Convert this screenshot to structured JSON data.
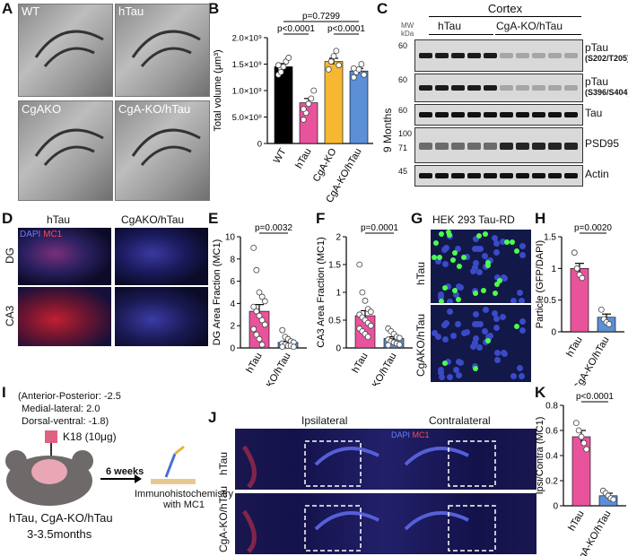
{
  "panels": {
    "A": "A",
    "B": "B",
    "C": "C",
    "D": "D",
    "E": "E",
    "F": "F",
    "G": "G",
    "H": "H",
    "I": "I",
    "J": "J",
    "K": "K"
  },
  "panelA": {
    "labels": [
      "WT",
      "hTau",
      "CgAKO",
      "CgA-KO/hTau"
    ]
  },
  "chart_data": [
    {
      "type": "bar",
      "panel": "B",
      "title": "",
      "ylabel": "Total volume (μm³)",
      "categories": [
        "WT",
        "hTau",
        "CgA-KO",
        "CgA-KO/hTau"
      ],
      "colors": [
        "#000000",
        "#e8539c",
        "#f5b830",
        "#5b8fd6"
      ],
      "values": [
        1450000000.0,
        770000000.0,
        1550000000.0,
        1370000000.0
      ],
      "errors": [
        60000000.0,
        80000000.0,
        60000000.0,
        50000000.0
      ],
      "points": [
        [
          1300000000.0,
          1400000000.0,
          1450000000.0,
          1550000000.0,
          1620000000.0,
          1480000000.0,
          1350000000.0
        ],
        [
          450000000.0,
          580000000.0,
          750000000.0,
          850000000.0,
          1000000000.0,
          650000000.0
        ],
        [
          1400000000.0,
          1550000000.0,
          1650000000.0,
          1750000000.0,
          1480000000.0
        ],
        [
          1250000000.0,
          1350000000.0,
          1400000000.0,
          1500000000.0,
          1300000000.0,
          1420000000.0
        ]
      ],
      "ylim": [
        0,
        2000000000.0
      ],
      "ticks": [
        {
          "v": 0,
          "label": "0"
        },
        {
          "v": 500000000.0,
          "label": "5.0×10⁸"
        },
        {
          "v": 1000000000.0,
          "label": "1.0×10⁹"
        },
        {
          "v": 1500000000.0,
          "label": "1.5×10⁹"
        },
        {
          "v": 2000000000.0,
          "label": "2.0×10⁹"
        }
      ],
      "pvalues": [
        {
          "from": 0,
          "to": 3,
          "label": "p=0.7299",
          "level": 2
        },
        {
          "from": 0,
          "to": 1,
          "label": "p<0.0001",
          "level": 1
        },
        {
          "from": 2,
          "to": 3,
          "label": "p<0.0001",
          "level": 1
        }
      ]
    },
    {
      "type": "bar",
      "panel": "E",
      "ylabel": "DG Area Fraction (MC1)",
      "categories": [
        "hTau",
        "CgA-KO/hTau"
      ],
      "colors": [
        "#e8539c",
        "#5b8fd6"
      ],
      "values": [
        3.3,
        0.5
      ],
      "errors": [
        0.6,
        0.12
      ],
      "points": [
        [
          9.0,
          7.0,
          5.0,
          4.6,
          4.2,
          3.7,
          3.3,
          2.9,
          2.5,
          2.1,
          1.7,
          1.2,
          0.8,
          0.3
        ],
        [
          1.6,
          1.0,
          0.8,
          0.6,
          0.5,
          0.4,
          0.3,
          0.2,
          0.2,
          0.1,
          0.1
        ]
      ],
      "ylim": [
        0,
        10
      ],
      "ticks": [
        0,
        2,
        4,
        6,
        8,
        10
      ],
      "pvalues": [
        {
          "from": 0,
          "to": 1,
          "label": "p=0.0032",
          "level": 1
        }
      ]
    },
    {
      "type": "bar",
      "panel": "F",
      "ylabel": "CA3 Area Fraction (MC1)",
      "categories": [
        "hTau",
        "CgA-KO/hTau"
      ],
      "colors": [
        "#e8539c",
        "#5b8fd6"
      ],
      "values": [
        0.58,
        0.17
      ],
      "errors": [
        0.09,
        0.03
      ],
      "points": [
        [
          1.5,
          1.0,
          0.85,
          0.7,
          0.65,
          0.6,
          0.55,
          0.5,
          0.45,
          0.4,
          0.35,
          0.3,
          0.25,
          0.2
        ],
        [
          0.35,
          0.3,
          0.25,
          0.2,
          0.18,
          0.15,
          0.12,
          0.1,
          0.08,
          0.06,
          0.05
        ]
      ],
      "ylim": [
        0,
        2.0
      ],
      "ticks": [
        0,
        0.5,
        1.0,
        1.5,
        2.0
      ],
      "pvalues": [
        {
          "from": 0,
          "to": 1,
          "label": "p=0.0001",
          "level": 1
        }
      ]
    },
    {
      "type": "bar",
      "panel": "H",
      "ylabel": "Particle (GFP/DAPI)",
      "categories": [
        "hTau",
        "CgA-KO/hTau"
      ],
      "colors": [
        "#e8539c",
        "#5b8fd6"
      ],
      "values": [
        1.0,
        0.23
      ],
      "errors": [
        0.08,
        0.05
      ],
      "points": [
        [
          1.25,
          1.0,
          0.9,
          0.85
        ],
        [
          0.35,
          0.2,
          0.15,
          0.12
        ]
      ],
      "ylim": [
        0,
        1.5
      ],
      "ticks": [
        0,
        0.5,
        1.0,
        1.5
      ],
      "pvalues": [
        {
          "from": 0,
          "to": 1,
          "label": "p=0.0020",
          "level": 1
        }
      ]
    },
    {
      "type": "bar",
      "panel": "K",
      "ylabel": "Ipsi/Contra (MC1)",
      "categories": [
        "hTau",
        "CgA-KO/hTau"
      ],
      "colors": [
        "#e8539c",
        "#5b8fd6"
      ],
      "values": [
        0.55,
        0.08
      ],
      "errors": [
        0.05,
        0.02
      ],
      "points": [
        [
          0.66,
          0.6,
          0.55,
          0.5,
          0.45
        ],
        [
          0.12,
          0.1,
          0.08,
          0.06,
          0.05
        ]
      ],
      "ylim": [
        0,
        0.8
      ],
      "ticks": [
        0,
        0.2,
        0.4,
        0.6,
        0.8
      ],
      "pvalues": [
        {
          "from": 0,
          "to": 1,
          "label": "p<0.0001",
          "level": 1
        }
      ]
    }
  ],
  "panelC": {
    "region": "Cortex",
    "groups": [
      "hTau",
      "CgA-KO/hTau"
    ],
    "age": "9 Months",
    "mw_header": "MW\nkDa",
    "rows": [
      {
        "label": "pTau",
        "sub": "(S202/T205)",
        "mw": [
          "60"
        ]
      },
      {
        "label": "pTau",
        "sub": "(S396/S404)",
        "mw": [
          "60"
        ]
      },
      {
        "label": "Tau",
        "sub": "",
        "mw": [
          "60"
        ]
      },
      {
        "label": "PSD95",
        "sub": "",
        "mw": [
          "100",
          "71"
        ]
      },
      {
        "label": "Actin",
        "sub": "",
        "mw": [
          "45"
        ]
      }
    ]
  },
  "panelD": {
    "cols": [
      "hTau",
      "CgAKO/hTau"
    ],
    "rows": [
      "DG",
      "CA3"
    ],
    "stain_dapi": "DAPI",
    "stain_mc1": "MC1"
  },
  "panelG": {
    "title": "HEK 293 Tau-RD",
    "rows": [
      "hTau",
      "CgAKO/hTau"
    ]
  },
  "panelI": {
    "coords": [
      "(Anterior-Posterior: -2.5",
      "Medial-lateral: 2.0",
      "Dorsal-ventral: -1.8)"
    ],
    "injection": "K18 (10μg)",
    "time": "6 weeks",
    "assay": "Immunohistochemistry\nwith MC1",
    "mice": "hTau, CgA-KO/hTau",
    "age": "3-3.5months"
  },
  "panelJ": {
    "cols": [
      "Ipsilateral",
      "Contralateral"
    ],
    "rows": [
      "hTau",
      "CgA-KO/hTau"
    ],
    "stain_dapi": "DAPI",
    "stain_mc1": "MC1"
  }
}
